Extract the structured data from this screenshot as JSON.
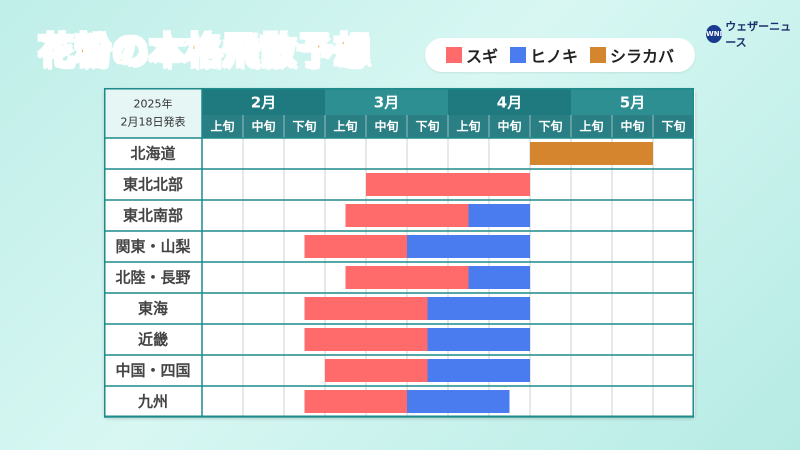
{
  "title": "花粉の本格飛散予想",
  "logo": {
    "mark": "WNI",
    "text": "ウェザーニュース"
  },
  "date_label": [
    "2025年",
    "2月18日発表"
  ],
  "legend": [
    {
      "label": "スギ",
      "color": "#ff6b6b"
    },
    {
      "label": "ヒノキ",
      "color": "#4a7cf0"
    },
    {
      "label": "シラカバ",
      "color": "#d4852e"
    }
  ],
  "chart_data": {
    "type": "gantt",
    "title": "花粉の本格飛散予想",
    "months": [
      "2月",
      "3月",
      "4月",
      "5月"
    ],
    "periods": [
      "上旬",
      "中旬",
      "下旬",
      "上旬",
      "中旬",
      "下旬",
      "上旬",
      "中旬",
      "下旬",
      "上旬",
      "中旬",
      "下旬"
    ],
    "regions": [
      {
        "name": "北海道",
        "segments": [
          {
            "series": "シラカバ",
            "start": 8,
            "end": 11
          }
        ]
      },
      {
        "name": "東北北部",
        "segments": [
          {
            "series": "スギ",
            "start": 4,
            "end": 8
          }
        ]
      },
      {
        "name": "東北南部",
        "segments": [
          {
            "series": "スギ",
            "start": 3.5,
            "end": 6.5
          },
          {
            "series": "ヒノキ",
            "start": 6.5,
            "end": 8
          }
        ]
      },
      {
        "name": "関東・山梨",
        "segments": [
          {
            "series": "スギ",
            "start": 2.5,
            "end": 5
          },
          {
            "series": "ヒノキ",
            "start": 5,
            "end": 8
          }
        ]
      },
      {
        "name": "北陸・長野",
        "segments": [
          {
            "series": "スギ",
            "start": 3.5,
            "end": 6.5
          },
          {
            "series": "ヒノキ",
            "start": 6.5,
            "end": 8
          }
        ]
      },
      {
        "name": "東海",
        "segments": [
          {
            "series": "スギ",
            "start": 2.5,
            "end": 5.5
          },
          {
            "series": "ヒノキ",
            "start": 5.5,
            "end": 8
          }
        ]
      },
      {
        "name": "近畿",
        "segments": [
          {
            "series": "スギ",
            "start": 2.5,
            "end": 5.5
          },
          {
            "series": "ヒノキ",
            "start": 5.5,
            "end": 8
          }
        ]
      },
      {
        "name": "中国・四国",
        "segments": [
          {
            "series": "スギ",
            "start": 3,
            "end": 5.5
          },
          {
            "series": "ヒノキ",
            "start": 5.5,
            "end": 8
          }
        ]
      },
      {
        "name": "九州",
        "segments": [
          {
            "series": "スギ",
            "start": 2.5,
            "end": 5
          },
          {
            "series": "ヒノキ",
            "start": 5,
            "end": 7.5
          }
        ]
      }
    ],
    "colors": {
      "スギ": "#ff6b6b",
      "ヒノキ": "#4a7cf0",
      "シラカバ": "#d4852e",
      "header_dark": "#1e7a7f",
      "header_light": "#2d8f92",
      "header_sub": "#2a7f85",
      "grid": "#1f8a8a",
      "row_label": "#444444",
      "corner": "#e6f6f4"
    }
  }
}
